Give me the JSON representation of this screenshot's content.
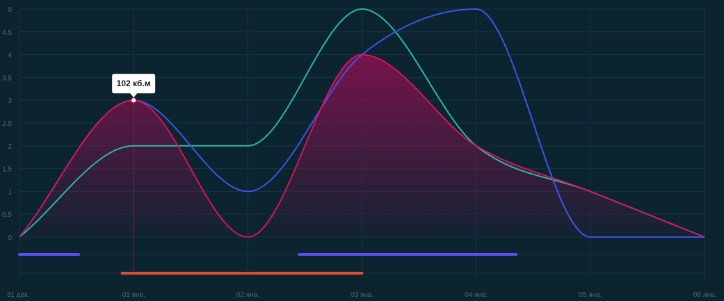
{
  "chart_data": {
    "type": "line",
    "x": [
      "31 дек.",
      "01 янв.",
      "02 янв.",
      "03 янв.",
      "04 янв.",
      "05 янв.",
      "06 янв."
    ],
    "ylim": [
      0,
      5
    ],
    "yticks": [
      "0",
      "0.5",
      "1",
      "1.5",
      "2",
      "2.5",
      "3",
      "3.5",
      "4",
      "4.5",
      "5"
    ],
    "grid": true,
    "series": [
      {
        "values": [
          0,
          2,
          2,
          5,
          2,
          1,
          0
        ],
        "color": "#28b8a4"
      },
      {
        "values": [
          0,
          3,
          1,
          4,
          5,
          0,
          0
        ],
        "color": "#3b55e6"
      },
      {
        "values": [
          0,
          3,
          0,
          4,
          2,
          1,
          0
        ],
        "color": "#d4145a",
        "area": true
      }
    ],
    "tooltip": {
      "text": "102 кб.м",
      "x_index": 1,
      "value": 3
    },
    "ranges": [
      {
        "start": 0,
        "end": 0.52,
        "color": "#5b4de8",
        "row": 1
      },
      {
        "start": 2.45,
        "end": 4.35,
        "color": "#5b4de8",
        "row": 1
      },
      {
        "start": 0.9,
        "end": 3.0,
        "color": "#e04e3a",
        "row": 2
      }
    ]
  }
}
